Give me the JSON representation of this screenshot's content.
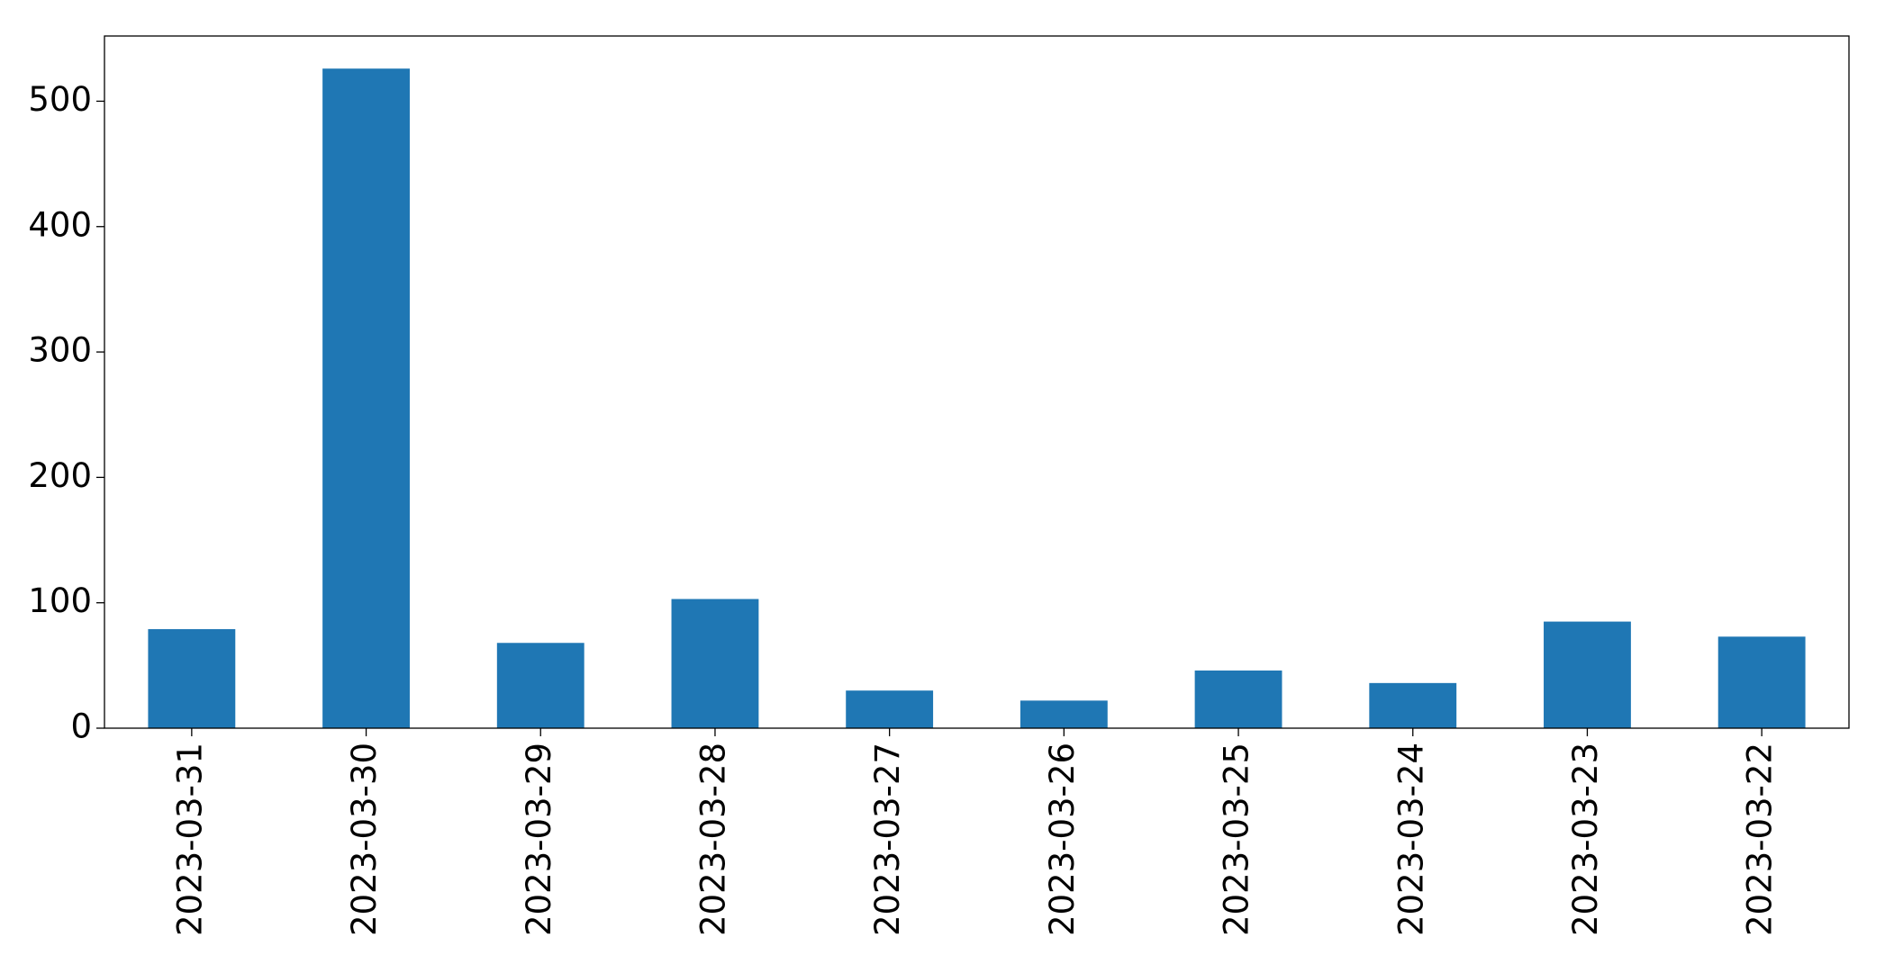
{
  "chart_data": {
    "type": "bar",
    "categories": [
      "2023-03-31",
      "2023-03-30",
      "2023-03-29",
      "2023-03-28",
      "2023-03-27",
      "2023-03-26",
      "2023-03-25",
      "2023-03-24",
      "2023-03-23",
      "2023-03-22"
    ],
    "values": [
      79,
      526,
      68,
      103,
      30,
      22,
      46,
      36,
      85,
      73
    ],
    "color": "#1f77b4",
    "ylim": [
      0,
      552
    ],
    "yticks": [
      0,
      100,
      200,
      300,
      400,
      500
    ],
    "grid": false
  }
}
